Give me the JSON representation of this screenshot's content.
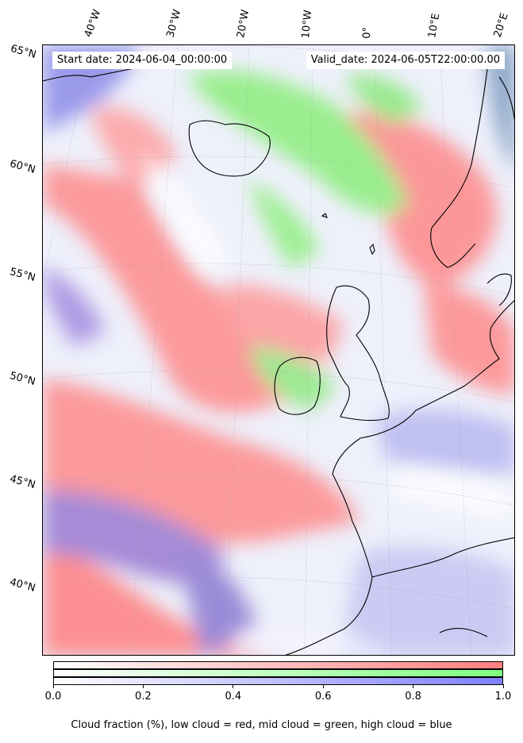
{
  "map": {
    "start_date": "Start date: 2024-06-04_00:00:00",
    "valid_date": "Valid_date: 2024-06-05T22:00:00.00",
    "lon_labels": [
      "40°W",
      "30°W",
      "20°W",
      "10°W",
      "0°",
      "10°E",
      "20°E"
    ],
    "lat_labels": [
      "65°N",
      "60°N",
      "55°N",
      "50°N",
      "45°N",
      "40°N"
    ],
    "region": "North Atlantic / Northwest Europe",
    "layers": {
      "low_cloud_color": "#ff7f7f",
      "mid_cloud_color": "#7fff7f",
      "high_cloud_color": "#7f7fff",
      "land_color": "#4a7a8c"
    }
  },
  "colorbar": {
    "tick_labels": [
      "0.0",
      "0.2",
      "0.4",
      "0.6",
      "0.8",
      "1.0"
    ],
    "ticks": [
      0,
      0.2,
      0.4,
      0.6,
      0.8,
      1.0
    ],
    "min": 0,
    "max": 1,
    "colors": [
      "#ff7f7f",
      "#7fff7f",
      "#7f7fff"
    ]
  },
  "caption": "Cloud fraction (%), low cloud = red, mid cloud = green, high cloud = blue"
}
